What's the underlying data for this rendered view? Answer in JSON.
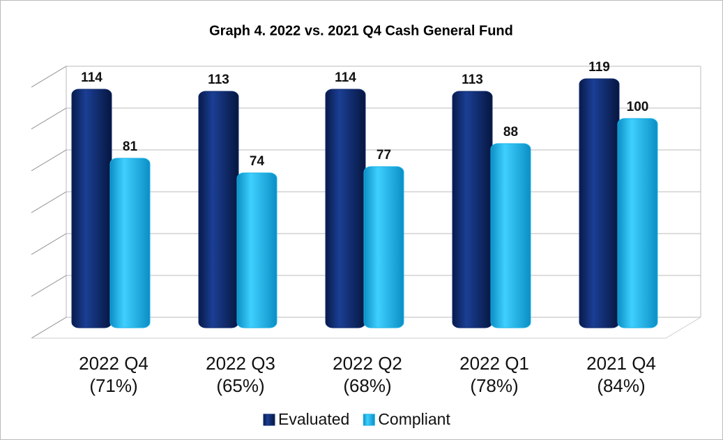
{
  "chart_data": {
    "type": "bar",
    "title": "Graph 4. 2022 vs. 2021 Q4 Cash General Fund",
    "categories": [
      "2022 Q4\n(71%)",
      "2022 Q3\n(65%)",
      "2022 Q2\n(68%)",
      "2022 Q1\n(78%)",
      "2021 Q4\n(84%)"
    ],
    "series": [
      {
        "name": "Evaluated",
        "color": "#0d2a6e",
        "values": [
          114,
          113,
          114,
          113,
          119
        ]
      },
      {
        "name": "Compliant",
        "color": "#17b0e6",
        "values": [
          81,
          74,
          77,
          88,
          100
        ]
      }
    ],
    "ylim": [
      0,
      120
    ],
    "yticks": [
      0,
      20,
      40,
      60,
      80,
      100,
      120
    ],
    "grid": true
  }
}
